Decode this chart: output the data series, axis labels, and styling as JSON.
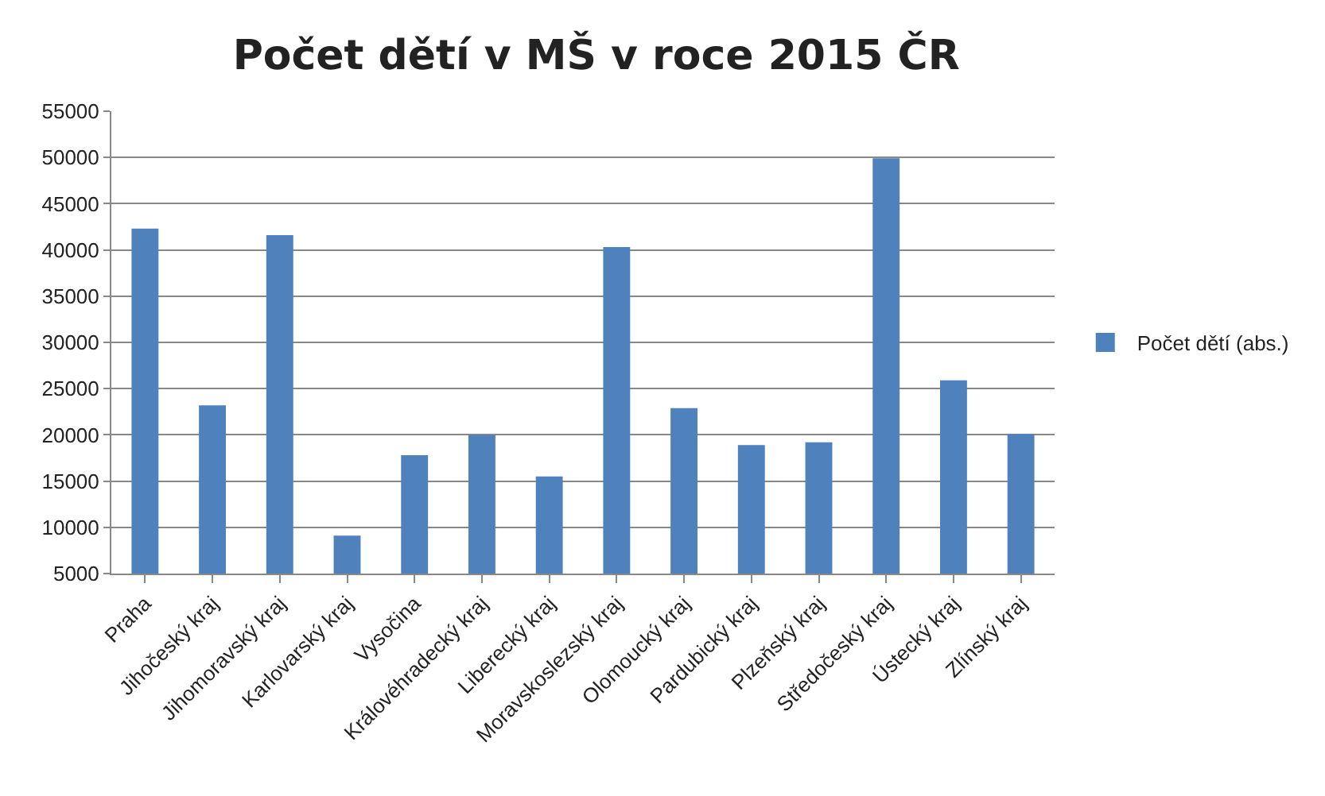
{
  "chart_data": {
    "type": "bar",
    "title": "Počet dětí v MŠ v roce 2015 ČR",
    "categories": [
      "Praha",
      "Jihočeský kraj",
      "Jihomoravský kraj",
      "Karlovarský kraj",
      "Vysočina",
      "Královéhradecký kraj",
      "Liberecký kraj",
      "Moravskoslezský kraj",
      "Olomoucký kraj",
      "Pardubický kraj",
      "Plzeňský kraj",
      "Středočeský kraj",
      "Ústecký kraj",
      "Zlínský kraj"
    ],
    "series": [
      {
        "name": "Počet dětí (abs.)",
        "color": "#4f81bd",
        "values": [
          42300,
          23200,
          41600,
          9100,
          17800,
          20000,
          15500,
          40300,
          22900,
          18900,
          19200,
          49900,
          25900,
          20100
        ]
      }
    ],
    "ylim": [
      5000,
      55000
    ],
    "yticks": [
      5000,
      10000,
      15000,
      20000,
      25000,
      30000,
      35000,
      40000,
      45000,
      50000,
      55000
    ],
    "grid": "y",
    "legend": "right"
  }
}
